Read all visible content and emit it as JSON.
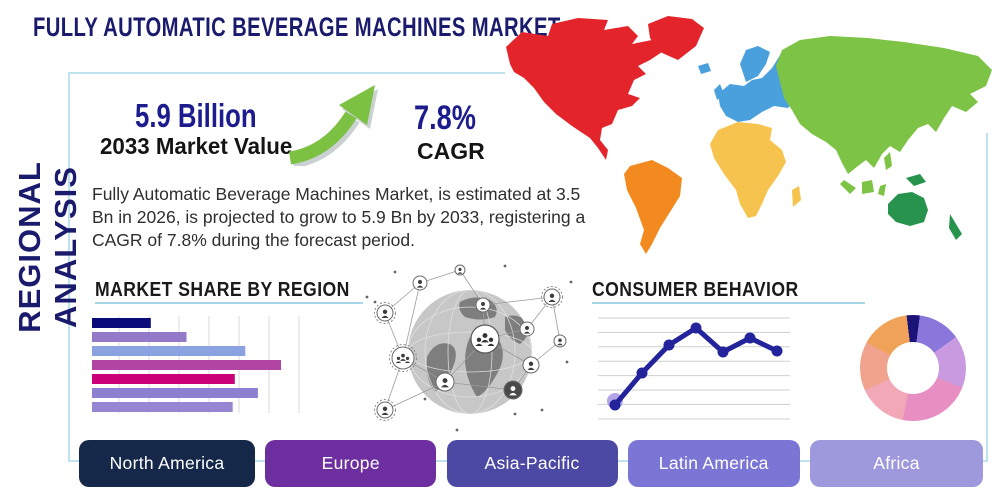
{
  "title": "FULLY AUTOMATIC BEVERAGE MACHINES MARKET",
  "sidebar_label": "REGIONAL ANALYSIS",
  "stats": {
    "market_value": "5.9 Billion",
    "market_value_caption": "2033 Market Value",
    "cagr_value": "7.8%",
    "cagr_caption": "CAGR",
    "growth_arrow_color": "#7cc142"
  },
  "description": "Fully Automatic Beverage Machines Market, is estimated at 3.5 Bn in 2026, is projected to grow to 5.9 Bn by 2033, registering a CAGR of 7.8% during the forecast period.",
  "sections": {
    "market_share_heading": "MARKET SHARE BY REGION",
    "consumer_behavior_heading": "CONSUMER BEHAVIOR"
  },
  "accents": {
    "frame": "#bfe2ef",
    "underline": "#a9d5e8",
    "title_navy": "#1b1b6e"
  },
  "chart_data": [
    {
      "type": "bar",
      "orientation": "horizontal",
      "title": "MARKET SHARE BY REGION",
      "values": [
        28,
        45,
        73,
        90,
        68,
        79,
        67
      ],
      "value_unit": "percent of chart width (no axis labels shown)",
      "colors": [
        "#0a0a78",
        "#9379c8",
        "#8aa3e0",
        "#b244a4",
        "#cc0077",
        "#8f7fd0",
        "#9585d2"
      ],
      "grid": "vertical"
    },
    {
      "type": "line",
      "title": "CONSUMER BEHAVIOR",
      "x": [
        1,
        2,
        3,
        4,
        5,
        6,
        7
      ],
      "values": [
        14,
        46,
        74,
        91,
        67,
        81,
        68
      ],
      "value_unit": "percent of chart height (no axis labels shown)",
      "line_color": "#23239b",
      "point_color": "#23239b",
      "first_point_halo_color": "#b2a4e6",
      "grid": "horizontal"
    },
    {
      "type": "pie",
      "donut": true,
      "start_angle_deg": -7,
      "values": [
        4,
        13,
        16,
        22,
        15,
        15,
        15
      ],
      "colors": [
        "#1b1478",
        "#8a77dc",
        "#c99ae0",
        "#e78ec2",
        "#f3a8b8",
        "#f2a38e",
        "#f0a358"
      ]
    }
  ],
  "map": {
    "region_colors": {
      "north_america": "#e3242b",
      "greenland": "#e3242b",
      "south_america": "#f28a1f",
      "europe": "#4aa0dc",
      "africa": "#f6c44e",
      "asia": "#7dc345",
      "oceania": "#27934d"
    }
  },
  "region_buttons": [
    {
      "label": "North America",
      "color": "#16284a"
    },
    {
      "label": "Europe",
      "color": "#6d2f9f"
    },
    {
      "label": "Asia-Pacific",
      "color": "#4c49a5"
    },
    {
      "label": "Latin America",
      "color": "#7b76d6"
    },
    {
      "label": "Africa",
      "color": "#9e99dd"
    }
  ]
}
